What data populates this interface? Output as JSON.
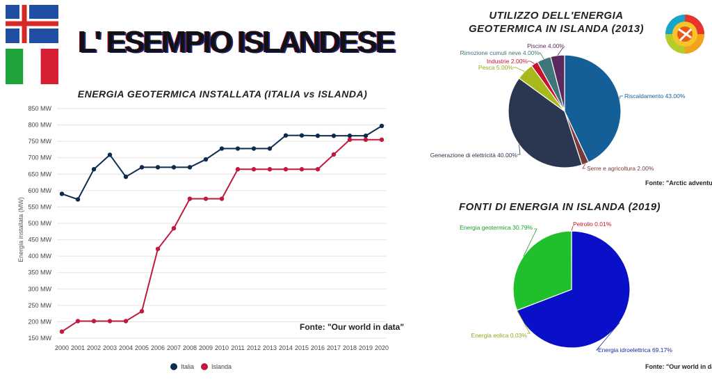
{
  "page": {
    "main_title": "L' ESEMPIO ISLANDESE",
    "flags": [
      {
        "country": "Islanda",
        "colors": {
          "field": "#1f4ea3",
          "cross_outer": "#ffffff",
          "cross_inner": "#d72828"
        }
      },
      {
        "country": "Italia",
        "colors": {
          "left": "#1ea43b",
          "middle": "#ffffff",
          "right": "#d61f33"
        }
      }
    ],
    "geothermal_logo_icon": "geothermal-globe-icon"
  },
  "chart_data": [
    {
      "id": "line",
      "type": "line",
      "title": "ENERGIA GEOTERMICA INSTALLATA (ITALIA vs ISLANDA)",
      "ylabel": "Energia installata (MW)",
      "xlabel": "",
      "source": "Fonte: \"Our world in data\"",
      "x": [
        "2000",
        "2001",
        "2002",
        "2003",
        "2004",
        "2005",
        "2006",
        "2007",
        "2008",
        "2009",
        "2010",
        "2011",
        "2012",
        "2013",
        "2014",
        "2015",
        "2016",
        "2017",
        "2018",
        "2019",
        "2020"
      ],
      "ylim": [
        150,
        850
      ],
      "yticks": [
        150,
        200,
        250,
        300,
        350,
        400,
        450,
        500,
        550,
        600,
        650,
        700,
        750,
        800,
        850
      ],
      "ytick_labels": [
        "150 MW",
        "200 MW",
        "250 MW",
        "300 MW",
        "350 MW",
        "400 MW",
        "450 MW",
        "500 MW",
        "550 MW",
        "600 MW",
        "650 MW",
        "700 MW",
        "750 MW",
        "800 MW",
        "850 MW"
      ],
      "grid": true,
      "legend_position": "bottom",
      "series": [
        {
          "name": "Italia",
          "color": "#0d2b4e",
          "values": [
            590,
            573,
            665,
            709,
            642,
            671,
            671,
            671,
            671,
            695,
            728,
            728,
            728,
            728,
            768,
            768,
            767,
            767,
            767,
            767,
            797
          ]
        },
        {
          "name": "Islanda",
          "color": "#c0193e",
          "values": [
            170,
            202,
            202,
            202,
            202,
            232,
            422,
            485,
            575,
            575,
            575,
            665,
            665,
            665,
            665,
            665,
            665,
            710,
            755,
            755,
            755
          ]
        }
      ]
    },
    {
      "id": "pie1",
      "type": "pie",
      "title": [
        "UTILIZZO DELL'ENERGIA",
        "GEOTERMICA IN ISLANDA (2013)"
      ],
      "source": "Fonte: \"Arctic adventures\"",
      "slices": [
        {
          "label": "Riscaldamento 43.00%",
          "value": 43,
          "color": "#155f99",
          "label_color": "#155f99"
        },
        {
          "label": "Serre e agricoltura 2.00%",
          "value": 2,
          "color": "#7a3a38",
          "label_color": "#7a3a38"
        },
        {
          "label": "Generazione di elettricità 40.00%",
          "value": 40,
          "color": "#2b3650",
          "label_color": "#2b3650"
        },
        {
          "label": "Pesca 5.00%",
          "value": 5,
          "color": "#a8ba1b",
          "label_color": "#98a81a"
        },
        {
          "label": "Industrie 2.00%",
          "value": 2,
          "color": "#c8102e",
          "label_color": "#c8102e"
        },
        {
          "label": "Rimozione cumuli neve 4.00%",
          "value": 4,
          "color": "#3e7679",
          "label_color": "#3e7679"
        },
        {
          "label": "Piscine 4.00%",
          "value": 4,
          "color": "#5b2a5e",
          "label_color": "#5b2a5e"
        }
      ]
    },
    {
      "id": "pie2",
      "type": "pie",
      "title": "FONTI DI ENERGIA IN ISLANDA (2019)",
      "source": "Fonte: \"Our world in data\"",
      "slices": [
        {
          "label": "Petrolio 0.01%",
          "value": 0.01,
          "color": "#c8102e",
          "label_color": "#c8102e"
        },
        {
          "label": "Energia idroelettrica 69.17%",
          "value": 69.17,
          "color": "#0a10c8",
          "label_color": "#1a2aa0"
        },
        {
          "label": "Energia eolica 0.03%",
          "value": 0.03,
          "color": "#b9c218",
          "label_color": "#9aa512"
        },
        {
          "label": "Energia geotermica 30.79%",
          "value": 30.79,
          "color": "#1fc02b",
          "label_color": "#1a9e26"
        }
      ]
    }
  ]
}
